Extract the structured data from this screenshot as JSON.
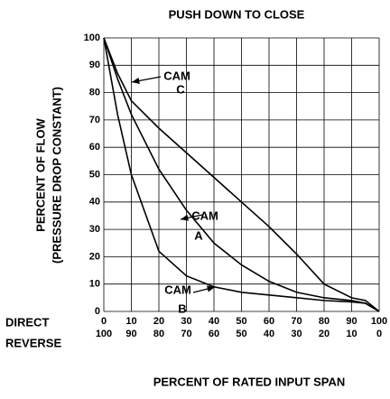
{
  "chart_data": {
    "type": "line",
    "title": "PUSH DOWN TO CLOSE",
    "ylabel": [
      "PERCENT OF FLOW",
      "(PRESSURE DROP CONSTANT)"
    ],
    "xlabel": "PERCENT OF RATED INPUT SPAN",
    "row_labels": [
      "DIRECT",
      "REVERSE"
    ],
    "x": [
      0,
      5,
      10,
      20,
      30,
      40,
      50,
      60,
      70,
      80,
      90,
      95,
      100
    ],
    "series": [
      {
        "name": [
          "CAM",
          "C"
        ],
        "color": "#000000",
        "values": [
          100,
          87,
          77,
          67,
          58,
          49,
          40,
          31,
          21,
          10,
          5,
          4,
          0
        ]
      },
      {
        "name": [
          "CAM",
          "A"
        ],
        "color": "#000000",
        "values": [
          100,
          85,
          72,
          52,
          37,
          25,
          17,
          11,
          7,
          5,
          4,
          3,
          0
        ]
      },
      {
        "name": [
          "CAM",
          "B"
        ],
        "color": "#000000",
        "values": [
          100,
          72,
          50,
          22,
          13,
          9,
          7,
          6,
          5,
          4,
          3.5,
          3,
          0
        ]
      }
    ],
    "xlim": [
      0,
      100
    ],
    "ylim": [
      0,
      100
    ],
    "xticks": [
      0,
      10,
      20,
      30,
      40,
      50,
      60,
      70,
      80,
      90,
      100
    ],
    "reverse_ticks": [
      100,
      90,
      80,
      70,
      60,
      50,
      40,
      30,
      20,
      10,
      0
    ],
    "yticks": [
      0,
      10,
      20,
      30,
      40,
      50,
      60,
      70,
      80,
      90,
      100
    ],
    "grid": true
  }
}
